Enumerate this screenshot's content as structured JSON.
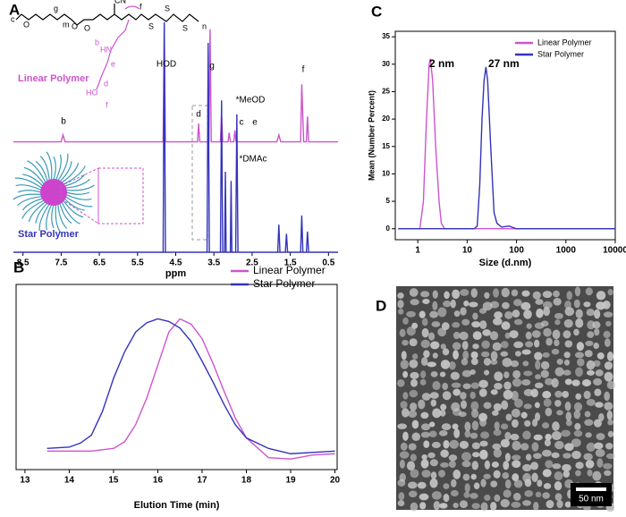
{
  "chart_data": [
    {
      "label": "A",
      "type": "line",
      "xlabel": "ppm",
      "xlim": [
        8.75,
        0.25
      ],
      "xticks": [
        8.5,
        7.5,
        6.5,
        5.5,
        4.5,
        3.5,
        2.5,
        1.5,
        0.5
      ],
      "ylim": [
        0,
        105
      ],
      "series": [
        {
          "color": "#cc55cc",
          "x": [
            8.75,
            7.5,
            7.45,
            7.4,
            4.83,
            4.8,
            4.77,
            3.93,
            3.9,
            3.87,
            3.63,
            3.6,
            3.57,
            3.33,
            3.3,
            3.27,
            3.13,
            3.1,
            3.07,
            2.98,
            2.95,
            2.92,
            1.85,
            1.8,
            1.75,
            1.23,
            1.2,
            1.15,
            1.08,
            1.05,
            1.02,
            0.25
          ],
          "values": [
            48,
            48,
            51,
            48,
            48,
            98,
            48,
            48,
            56,
            48,
            48,
            97,
            48,
            48,
            60,
            48,
            48,
            52,
            48,
            48,
            53,
            48,
            48,
            51,
            48,
            48,
            73,
            48,
            48,
            59,
            48,
            48
          ]
        },
        {
          "color": "#3333bb",
          "x": [
            8.75,
            4.83,
            4.8,
            4.77,
            3.68,
            3.65,
            3.62,
            3.33,
            3.3,
            3.27,
            3.22,
            3.2,
            3.18,
            3.07,
            3.05,
            3.03,
            2.93,
            2.9,
            2.87,
            1.83,
            1.8,
            1.77,
            1.63,
            1.6,
            1.57,
            1.23,
            1.2,
            1.17,
            1.08,
            1.05,
            1.02,
            0.25
          ],
          "values": [
            0,
            0,
            100,
            0,
            0,
            91,
            0,
            0,
            66,
            0,
            0,
            35,
            0,
            0,
            31,
            0,
            0,
            60,
            0,
            0,
            12,
            0,
            0,
            8,
            0,
            0,
            16,
            0,
            0,
            9,
            0,
            0
          ]
        }
      ],
      "annotations": [
        {
          "text": "HOD",
          "color": "#000000"
        },
        {
          "text": "g",
          "color": "#000000"
        },
        {
          "text": "f",
          "color": "#000000"
        },
        {
          "text": "b",
          "color": "#000000"
        },
        {
          "text": "d",
          "color": "#000000"
        },
        {
          "text": "c",
          "color": "#000000"
        },
        {
          "text": "e",
          "color": "#000000"
        },
        {
          "text": "*MeOD",
          "color": "#000000"
        },
        {
          "text": "*DMAc",
          "color": "#000000"
        },
        {
          "text": "Linear Polymer",
          "color": "#cc55cc"
        },
        {
          "text": "Star Polymer",
          "color": "#3333bb"
        }
      ],
      "structure_labels": [
        "c",
        "O",
        "g",
        "m",
        "O",
        "O",
        "CN",
        "f",
        "S",
        "S",
        "S",
        "n",
        "HN",
        "b",
        "e",
        "HO",
        "d",
        "f"
      ]
    },
    {
      "label": "B",
      "type": "line",
      "xlabel": "Elution Time (min)",
      "xlim": [
        12.8,
        20.05
      ],
      "xticks": [
        13,
        14,
        15,
        16,
        17,
        18,
        19,
        20
      ],
      "ylim": [
        -0.14,
        1.26
      ],
      "legend": "upper right",
      "series": [
        {
          "name": "Linear Polymer",
          "color": "#cc55cc",
          "x": [
            13.5,
            14,
            14.5,
            15,
            15.25,
            15.5,
            15.75,
            16,
            16.25,
            16.5,
            16.75,
            17,
            17.25,
            17.5,
            17.75,
            18,
            18.5,
            19,
            19.5,
            20
          ],
          "values": [
            0,
            0,
            0,
            0.02,
            0.07,
            0.2,
            0.4,
            0.65,
            0.9,
            1.0,
            0.96,
            0.85,
            0.66,
            0.45,
            0.25,
            0.1,
            -0.05,
            -0.06,
            -0.03,
            -0.02
          ]
        },
        {
          "name": "Star Polymer",
          "color": "#3333bb",
          "x": [
            13.5,
            14,
            14.25,
            14.5,
            14.75,
            15,
            15.25,
            15.5,
            15.75,
            16,
            16.25,
            16.5,
            16.75,
            17,
            17.25,
            17.5,
            17.75,
            18,
            18.5,
            19,
            19.5,
            20
          ],
          "values": [
            0.02,
            0.03,
            0.06,
            0.12,
            0.3,
            0.55,
            0.75,
            0.9,
            0.97,
            1.0,
            0.98,
            0.93,
            0.83,
            0.68,
            0.52,
            0.35,
            0.2,
            0.1,
            0.02,
            -0.02,
            -0.01,
            0
          ]
        }
      ]
    },
    {
      "label": "C",
      "type": "line",
      "xlabel": "Size (d.nm)",
      "ylabel": "Mean (Number Percent)",
      "xscale": "log",
      "xlim": [
        0.35,
        10000
      ],
      "xticks": [
        1,
        10,
        100,
        1000,
        10000
      ],
      "ylim": [
        -2,
        36
      ],
      "yticks": [
        0,
        5,
        10,
        15,
        20,
        25,
        30,
        35
      ],
      "legend": "upper right",
      "series": [
        {
          "name": "Linear Polymer",
          "color": "#cc55cc",
          "x": [
            0.4,
            1.1,
            1.3,
            1.5,
            1.7,
            1.8,
            2.0,
            2.3,
            2.7,
            3,
            3.5,
            5,
            10000
          ],
          "values": [
            0,
            0,
            5,
            20,
            30,
            31,
            27,
            15,
            5,
            1,
            0,
            0,
            0
          ]
        },
        {
          "name": "Star Polymer",
          "color": "#3333bb",
          "x": [
            0.4,
            14,
            16,
            18,
            20,
            22,
            24,
            26,
            30,
            35,
            40,
            50,
            70,
            100,
            10000
          ],
          "values": [
            0,
            0,
            0.5,
            8,
            20,
            27,
            29.5,
            27,
            15,
            3,
            1,
            0.3,
            0.5,
            0,
            0
          ]
        }
      ],
      "annotations": [
        {
          "text": "2 nm",
          "color": "#000000"
        },
        {
          "text": "27 nm",
          "color": "#000000"
        }
      ]
    }
  ],
  "image": {
    "label": "D",
    "scale_bar": "50 nm"
  }
}
